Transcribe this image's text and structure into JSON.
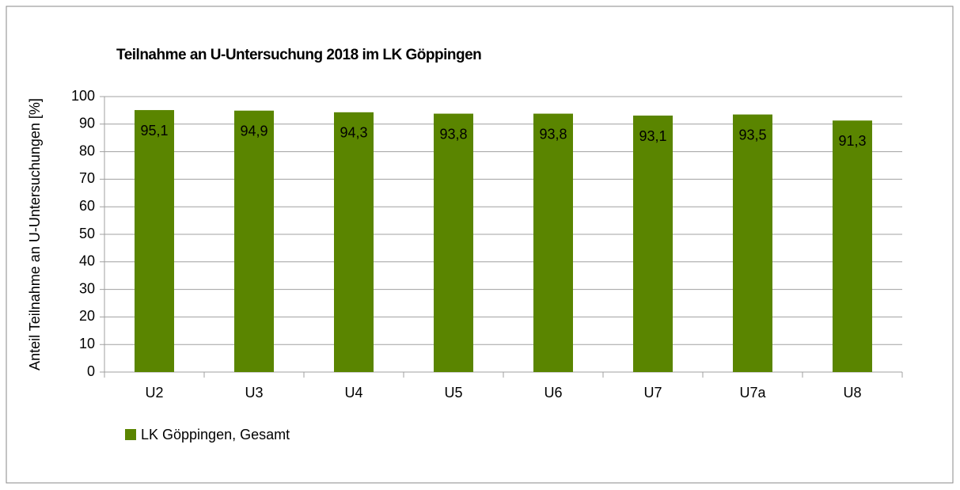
{
  "chart_data": {
    "type": "bar",
    "title": "Teilnahme an U-Untersuchung  2018 im LK Göppingen",
    "y_label": "Anteil Teilnahme an U-Untersuchungen [%]",
    "categories": [
      "U2",
      "U3",
      "U4",
      "U5",
      "U6",
      "U7",
      "U7a",
      "U8"
    ],
    "series": [
      {
        "name": "LK Göppingen, Gesamt",
        "color": "#5a8500",
        "values": [
          95.1,
          94.9,
          94.3,
          93.8,
          93.8,
          93.1,
          93.5,
          91.3
        ],
        "value_labels": [
          "95,1",
          "94,9",
          "94,3",
          "93,8",
          "93,8",
          "93,1",
          "93,5",
          "91,3"
        ]
      }
    ],
    "ylim": [
      0,
      100
    ],
    "yticks": [
      0,
      10,
      20,
      30,
      40,
      50,
      60,
      70,
      80,
      90,
      100
    ],
    "grid": true,
    "legend": "bottom-left"
  }
}
